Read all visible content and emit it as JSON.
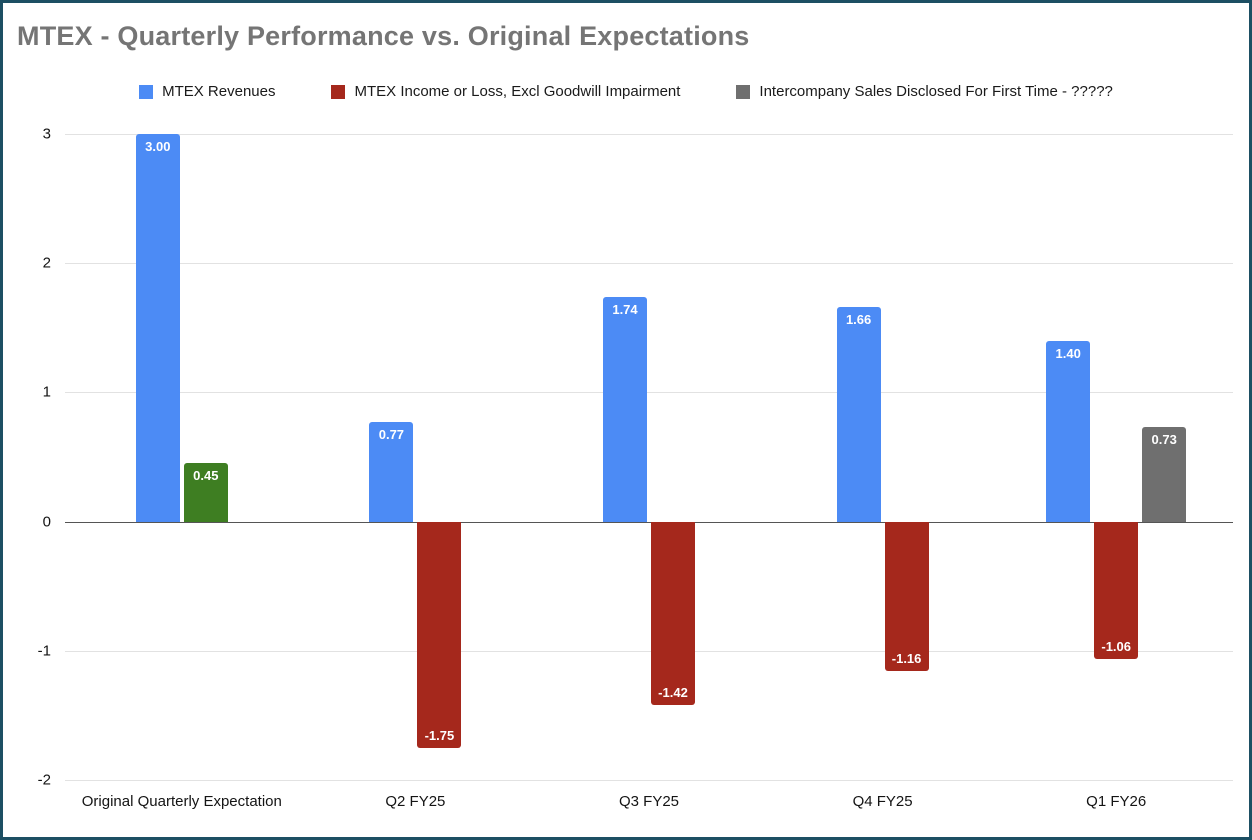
{
  "window": {
    "border_color": "#1d4f63",
    "background": "#ffffff"
  },
  "chart_data": {
    "type": "bar",
    "title": "MTEX - Quarterly Performance vs. Original Expectations",
    "title_color": "#757575",
    "categories": [
      "Original Quarterly Expectation",
      "Q2 FY25",
      "Q3 FY25",
      "Q4 FY25",
      "Q1 FY26"
    ],
    "series": [
      {
        "name": "MTEX Revenues",
        "color": "#4c8bf5",
        "values": [
          3.0,
          0.77,
          1.74,
          1.66,
          1.4
        ],
        "labels": [
          "3.00",
          "0.77",
          "1.74",
          "1.66",
          "1.40"
        ]
      },
      {
        "name": "MTEX Income or Loss, Excl Goodwill Impairment",
        "color": "#a5281c",
        "values": [
          0.45,
          -1.75,
          -1.42,
          -1.16,
          -1.06
        ],
        "labels": [
          "0.45",
          "-1.75",
          "-1.42",
          "-1.16",
          "-1.06"
        ],
        "point_colors": {
          "0": "#3e7e22"
        }
      },
      {
        "name": "Intercompany Sales Disclosed For First Time - ?????",
        "color": "#6f6f6f",
        "values": [
          null,
          null,
          null,
          null,
          0.73
        ],
        "labels": [
          null,
          null,
          null,
          null,
          "0.73"
        ]
      }
    ],
    "ylim": [
      -2,
      3
    ],
    "yticks": [
      3,
      2,
      1,
      0,
      -1,
      -2
    ],
    "grid": true,
    "legend_position": "top",
    "bar_label_color": "#ffffff",
    "grid_color": "#e2e2e2",
    "zero_line_color": "#555555"
  }
}
